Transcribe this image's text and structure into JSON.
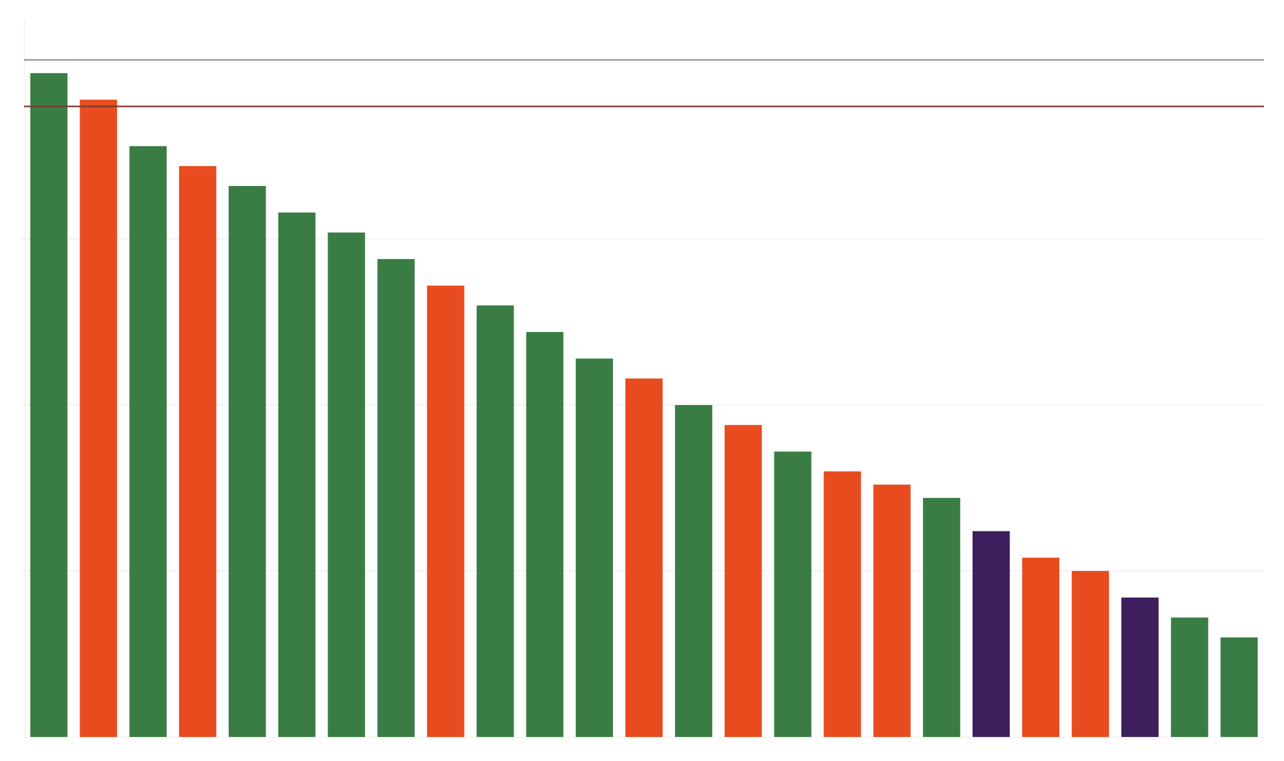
{
  "chart_data": {
    "type": "bar",
    "categories": [
      null,
      null,
      null,
      null,
      null,
      null,
      null,
      null,
      null,
      null,
      null,
      null,
      null,
      null,
      null,
      null,
      null,
      null,
      null,
      null,
      null,
      null,
      null,
      null,
      null
    ],
    "values": [
      100,
      96,
      89,
      86,
      83,
      79,
      76,
      72,
      68,
      65,
      61,
      57,
      54,
      50,
      47,
      43,
      40,
      38,
      36,
      31,
      27,
      25,
      21,
      18,
      15
    ],
    "colors": [
      "#3a7d44",
      "#e84c1e",
      "#3a7d44",
      "#e84c1e",
      "#3a7d44",
      "#3a7d44",
      "#3a7d44",
      "#3a7d44",
      "#e84c1e",
      "#3a7d44",
      "#3a7d44",
      "#3a7d44",
      "#e84c1e",
      "#3a7d44",
      "#e84c1e",
      "#3a7d44",
      "#e84c1e",
      "#e84c1e",
      "#3a7d44",
      "#3d1f5e",
      "#e84c1e",
      "#e84c1e",
      "#3d1f5e",
      "#3a7d44",
      "#3a7d44"
    ],
    "ylim": [
      0,
      108
    ],
    "yticks": [
      25,
      50,
      75
    ],
    "grid": true,
    "tick_labels": false,
    "reference_lines": [
      {
        "value": 102,
        "color": "#999999"
      },
      {
        "value": 95,
        "color": "#7a3a35"
      }
    ]
  }
}
